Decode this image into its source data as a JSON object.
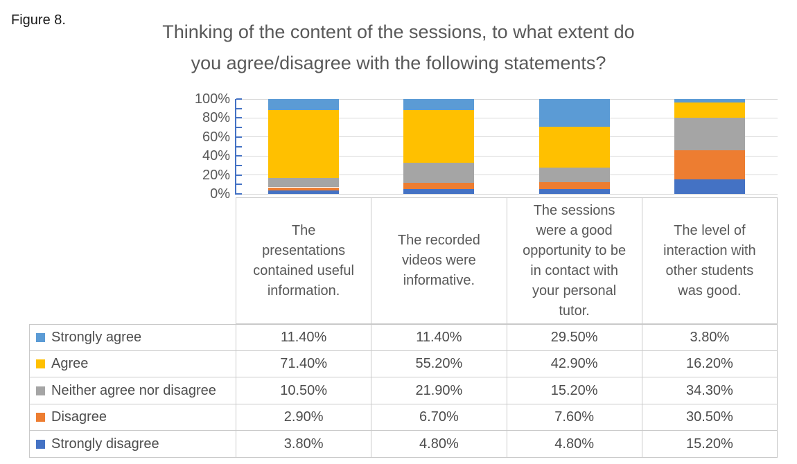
{
  "figure_label": "Figure 8.",
  "title": {
    "line1": "Thinking of the content of the sessions, to what extent do",
    "line2": "you agree/disagree with the following statements?"
  },
  "chart_data": {
    "type": "bar",
    "subtype": "100-percent-stacked-column-with-data-table",
    "title": "Thinking of the content of the sessions, to what extent do you agree/disagree with the following statements?",
    "categories": [
      "The presentations contained useful information.",
      "The recorded videos were informative.",
      "The sessions were a good opportunity to be in contact with your personal tutor.",
      "The level of interaction with other students was good."
    ],
    "categories_lines": [
      [
        "The",
        "presentations",
        "contained useful",
        "information."
      ],
      [
        "The recorded",
        "videos were",
        "informative."
      ],
      [
        "The sessions",
        "were a good",
        "opportunity to be",
        "in contact with",
        "your personal",
        "tutor."
      ],
      [
        "The level of",
        "interaction with",
        "other students",
        "was good."
      ]
    ],
    "series": [
      {
        "name": "Strongly agree",
        "color": "#5B9BD5",
        "values": [
          11.4,
          11.4,
          29.5,
          3.8
        ],
        "labels": [
          "11.40%",
          "11.40%",
          "29.50%",
          "3.80%"
        ]
      },
      {
        "name": "Agree",
        "color": "#FFC000",
        "values": [
          71.4,
          55.2,
          42.9,
          16.2
        ],
        "labels": [
          "71.40%",
          "55.20%",
          "42.90%",
          "16.20%"
        ]
      },
      {
        "name": "Neither agree nor disagree",
        "color": "#A5A5A5",
        "values": [
          10.5,
          21.9,
          15.2,
          34.3
        ],
        "labels": [
          "10.50%",
          "21.90%",
          "15.20%",
          "34.30%"
        ]
      },
      {
        "name": "Disagree",
        "color": "#ED7D31",
        "values": [
          2.9,
          6.7,
          7.6,
          30.5
        ],
        "labels": [
          "2.90%",
          "6.70%",
          "7.60%",
          "30.50%"
        ]
      },
      {
        "name": "Strongly disagree",
        "color": "#4472C4",
        "values": [
          3.8,
          4.8,
          4.8,
          15.2
        ],
        "labels": [
          "3.80%",
          "4.80%",
          "4.80%",
          "15.20%"
        ]
      }
    ],
    "stack_order_bottom_to_top": [
      "Strongly disagree",
      "Disagree",
      "Neither agree nor disagree",
      "Agree",
      "Strongly agree"
    ],
    "y_tick_labels": [
      "0%",
      "20%",
      "40%",
      "60%",
      "80%",
      "100%"
    ],
    "ylim": [
      0,
      100
    ],
    "minor_tick_step": 10,
    "grid": true,
    "axis_color": "#4472C4",
    "gridline_color": "#D9D9D9",
    "legend_position": "table-left-column"
  }
}
